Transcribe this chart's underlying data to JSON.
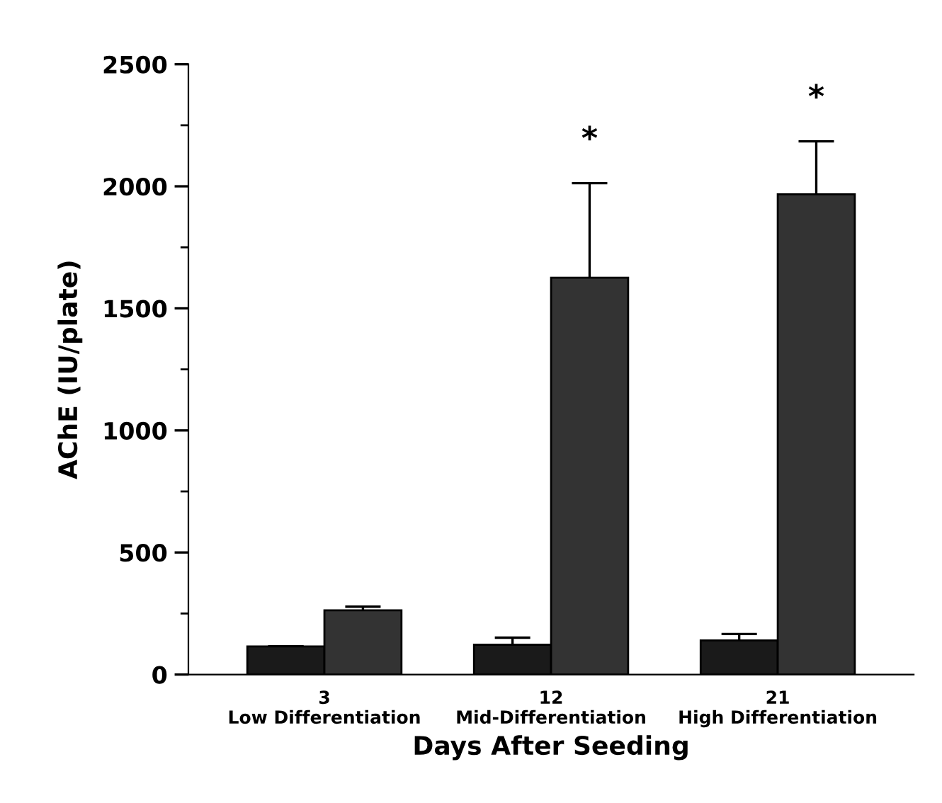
{
  "chart_data": {
    "type": "bar",
    "xlabel": "Days After Seeding",
    "ylabel": "AChE (IU/plate)",
    "categories": [
      "3\nLow Differentiation",
      "12\nMid-Differentiation",
      "21\nHigh Differentiation"
    ],
    "series": [
      {
        "color": "#1a1a1a",
        "values": [
          115,
          122,
          140
        ],
        "errors": [
          null,
          29,
          26
        ]
      },
      {
        "color": "#333333",
        "values": [
          263,
          1626,
          1967
        ],
        "errors": [
          15,
          387,
          217
        ]
      }
    ],
    "ylim": [
      0,
      2500
    ],
    "yticks": [
      0,
      500,
      1000,
      1500,
      2000,
      2500
    ],
    "grid": false,
    "legend": false,
    "annotations": [
      "*",
      "*"
    ]
  }
}
